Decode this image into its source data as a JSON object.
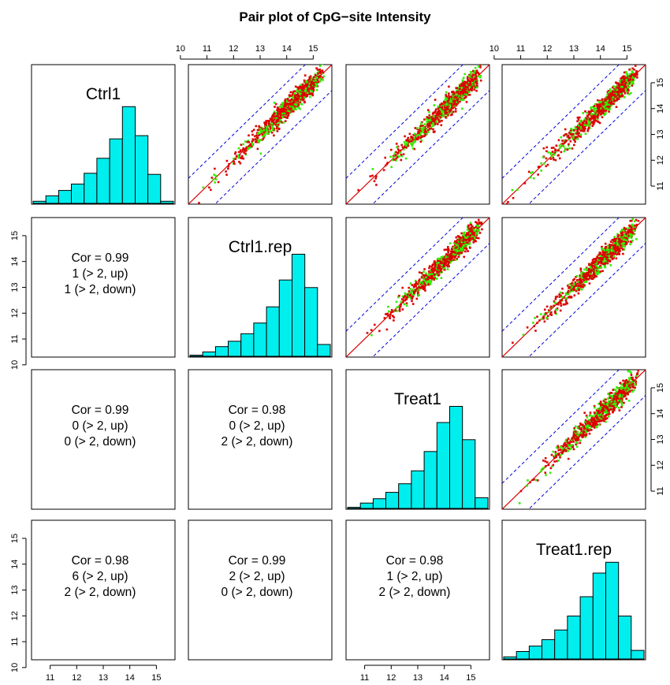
{
  "title": "Pair plot of CpG−site Intensity",
  "axis_ticks": [
    "10",
    "11",
    "12",
    "13",
    "14",
    "15"
  ],
  "colors": {
    "background": "#ffffff",
    "histogram_fill": "#00eeee",
    "points_primary": "#dd0000",
    "points_secondary": "#33ee00",
    "identity_line": "#dd0000",
    "fold_lines": "#0000dd",
    "frame": "#000000"
  },
  "chart_data": {
    "type": "scatter",
    "subtype": "pairs matrix",
    "variables": [
      "Ctrl1",
      "Ctrl1.rep",
      "Treat1",
      "Treat1.rep"
    ],
    "axis_range": [
      10.3,
      15.7
    ],
    "tick_values": [
      10,
      11,
      12,
      13,
      14,
      15
    ],
    "reference_lines": {
      "identity": "y = x",
      "fold_offset": 1
    },
    "diagonal": {
      "type": "bar",
      "bin_edges": [
        10.5,
        11,
        11.5,
        12,
        12.5,
        13,
        13.5,
        14,
        14.5,
        15,
        15.5,
        16
      ],
      "counts": {
        "Ctrl1": [
          0.02,
          0.07,
          0.12,
          0.18,
          0.28,
          0.42,
          0.6,
          0.9,
          0.63,
          0.27,
          0.02,
          0
        ],
        "Ctrl1.rep": [
          0.01,
          0.04,
          0.09,
          0.14,
          0.21,
          0.31,
          0.46,
          0.71,
          0.95,
          0.64,
          0.11,
          0.01
        ],
        "Treat1": [
          0.01,
          0.05,
          0.09,
          0.15,
          0.23,
          0.35,
          0.53,
          0.8,
          0.95,
          0.64,
          0.1,
          0.01
        ],
        "Treat1.rep": [
          0.02,
          0.07,
          0.12,
          0.18,
          0.27,
          0.4,
          0.58,
          0.8,
          0.9,
          0.4,
          0.08,
          0.01
        ]
      }
    },
    "lower_panels": [
      {
        "row": 1,
        "col": 0,
        "cor": 0.99,
        "up": 1,
        "down": 1
      },
      {
        "row": 2,
        "col": 0,
        "cor": 0.99,
        "up": 0,
        "down": 0
      },
      {
        "row": 2,
        "col": 1,
        "cor": 0.98,
        "up": 0,
        "down": 2
      },
      {
        "row": 3,
        "col": 0,
        "cor": 0.98,
        "up": 6,
        "down": 2
      },
      {
        "row": 3,
        "col": 1,
        "cor": 0.99,
        "up": 2,
        "down": 0
      },
      {
        "row": 3,
        "col": 2,
        "cor": 0.98,
        "up": 1,
        "down": 2
      }
    ],
    "lower_text": {
      "Ctrl1.rep_vs_Ctrl1": [
        "Cor = 0.99",
        "1 (> 2, up)",
        "1 (> 2, down)"
      ],
      "Treat1_vs_Ctrl1": [
        "Cor = 0.99",
        "0 (> 2, up)",
        "0 (> 2, down)"
      ],
      "Treat1_vs_Ctrl1.rep": [
        "Cor = 0.98",
        "0 (> 2, up)",
        "2 (> 2, down)"
      ],
      "Treat1.rep_vs_Ctrl1": [
        "Cor = 0.98",
        "6 (> 2, up)",
        "2 (> 2, down)"
      ],
      "Treat1.rep_vs_Ctrl1.rep": [
        "Cor = 0.99",
        "2 (> 2, up)",
        "0 (> 2, down)"
      ],
      "Treat1.rep_vs_Treat1": [
        "Cor = 0.98",
        "1 (> 2, up)",
        "2 (> 2, down)"
      ]
    }
  }
}
